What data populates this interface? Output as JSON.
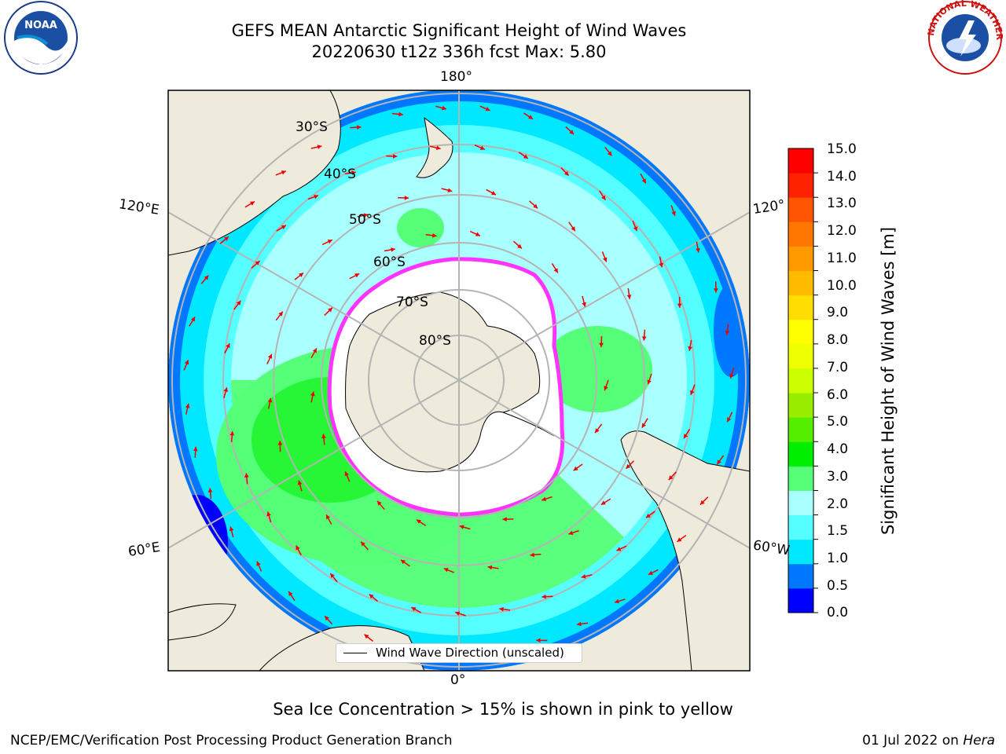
{
  "header": {
    "title_line1": "GEFS MEAN Antarctic Significant Height of Wind Waves",
    "title_line2": "20220630 t12z 336h fcst   Max: 5.80"
  },
  "map": {
    "projection": "south-polar-stereographic",
    "longitude_labels": {
      "top": "180°",
      "left_upper": "120°E",
      "right_upper": "120°",
      "left_lower": "60°E",
      "right_lower": "60°W",
      "bottom": "0°"
    },
    "latitude_labels": [
      "30°S",
      "40°S",
      "50°S",
      "60°S",
      "70°S",
      "80°S"
    ],
    "legend_label": "Wind Wave Direction (unscaled)",
    "colors": {
      "land": "#efebdc",
      "ice": "#ffffff",
      "ice_edge": "#ff33ff",
      "vector": "#ee0000",
      "grid": "#b4b4b4"
    }
  },
  "colorbar": {
    "label": "Significant Height of Wind Waves [m]",
    "ticks": [
      "15.0",
      "14.0",
      "13.0",
      "12.0",
      "11.0",
      "10.0",
      "9.0",
      "8.0",
      "7.0",
      "6.0",
      "5.0",
      "4.0",
      "3.0",
      "2.0",
      "1.5",
      "1.0",
      "0.5",
      "0.0"
    ],
    "colors_bottom_to_top": [
      "#0000ff",
      "#0077ff",
      "#00e8ff",
      "#55ffff",
      "#aaffff",
      "#55ff77",
      "#00ee00",
      "#55ee00",
      "#99ee00",
      "#ccff00",
      "#eeff00",
      "#ffff00",
      "#ffdd00",
      "#ffbb00",
      "#ff9900",
      "#ff7700",
      "#ff5500",
      "#ff2200",
      "#ff0000"
    ]
  },
  "caption": "Sea Ice Concentration > 15% is shown in pink to yellow",
  "footer": {
    "left": "NCEP/EMC/Verification Post Processing Product Generation Branch",
    "right_prefix": "01 Jul 2022 on ",
    "right_emph": "Hera"
  },
  "logos": {
    "left": "NOAA",
    "right": "NATIONAL WEATHER SERVICE"
  }
}
